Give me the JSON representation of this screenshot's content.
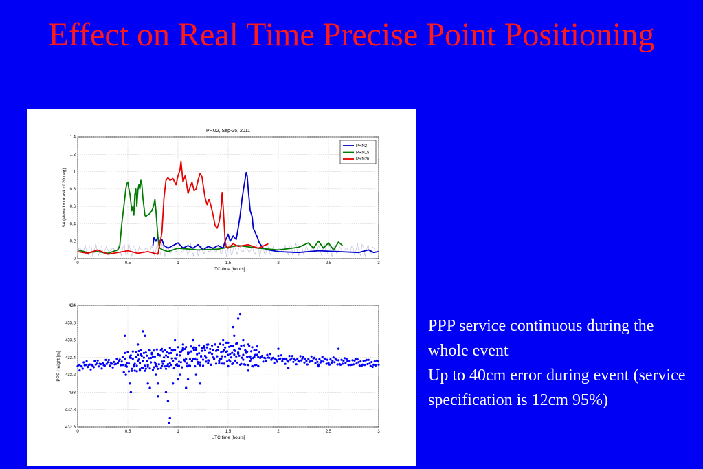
{
  "slide": {
    "title": "Effect on Real Time Precise Point Positioning",
    "bullets": [
      "PPP service continuous during the whole event",
      "Up to 40cm error during event (service specification is 12cm 95%)"
    ]
  },
  "colors": {
    "background": "#0000f5",
    "title": "#ff1a1a",
    "text": "#ffffff",
    "PRN2": "#0000cc",
    "PRN15": "#007a00",
    "PRN26": "#e60000"
  },
  "chart_data": [
    {
      "type": "line",
      "title": "PRU2, Sep-25, 2011",
      "xlabel": "UTC time [hours]",
      "ylabel": "S4 (elevation mask of 20 deg)",
      "xlim": [
        0,
        3
      ],
      "ylim": [
        0,
        1.4
      ],
      "xticks": [
        0,
        0.5,
        1,
        1.5,
        2,
        2.5,
        3
      ],
      "xtick_labels": [
        "0",
        "0.5",
        "1",
        "1.5",
        "2",
        "2.5",
        "3"
      ],
      "yticks": [
        0,
        0.2,
        0.4,
        0.6,
        0.8,
        1,
        1.2,
        1.4
      ],
      "ytick_labels": [
        "0",
        "0.2",
        "0.4",
        "0.6",
        "0.8",
        "1",
        "1.2",
        "1.4"
      ],
      "grid": true,
      "legend": "top-right",
      "series": [
        {
          "name": "PRN2",
          "x": [
            0.75,
            0.76,
            0.78,
            0.8,
            0.82,
            0.84,
            0.86,
            0.9,
            0.95,
            1.0,
            1.05,
            1.1,
            1.15,
            1.2,
            1.25,
            1.3,
            1.35,
            1.4,
            1.45,
            1.47,
            1.5,
            1.52,
            1.55,
            1.58,
            1.6,
            1.62,
            1.64,
            1.66,
            1.68,
            1.69,
            1.7,
            1.72,
            1.74,
            1.75,
            1.77,
            1.79,
            1.81,
            1.83,
            1.85,
            1.9,
            2.0,
            2.2,
            2.4,
            2.6,
            2.8,
            2.9,
            2.95,
            3.0
          ],
          "y": [
            0.15,
            0.24,
            0.2,
            0.25,
            0.18,
            0.22,
            0.15,
            0.12,
            0.15,
            0.18,
            0.12,
            0.15,
            0.12,
            0.16,
            0.1,
            0.14,
            0.12,
            0.15,
            0.12,
            0.2,
            0.28,
            0.2,
            0.26,
            0.22,
            0.35,
            0.5,
            0.7,
            0.85,
            0.99,
            0.95,
            0.8,
            0.55,
            0.48,
            0.35,
            0.3,
            0.25,
            0.18,
            0.15,
            0.12,
            0.1,
            0.08,
            0.07,
            0.09,
            0.08,
            0.07,
            0.1,
            0.07,
            0.08
          ]
        },
        {
          "name": "PRN15",
          "x": [
            0.0,
            0.1,
            0.2,
            0.3,
            0.4,
            0.42,
            0.44,
            0.46,
            0.48,
            0.49,
            0.5,
            0.51,
            0.52,
            0.54,
            0.55,
            0.56,
            0.57,
            0.58,
            0.59,
            0.6,
            0.61,
            0.62,
            0.63,
            0.64,
            0.65,
            0.66,
            0.67,
            0.68,
            0.69,
            0.7,
            0.72,
            0.74,
            0.76,
            0.77,
            0.78,
            0.79,
            0.8,
            0.81,
            0.82,
            0.85,
            0.9,
            1.0,
            1.2,
            1.4,
            1.6,
            1.8,
            2.0,
            2.2,
            2.3,
            2.35,
            2.4,
            2.45,
            2.5,
            2.55,
            2.6,
            2.64
          ],
          "y": [
            0.1,
            0.07,
            0.08,
            0.06,
            0.1,
            0.15,
            0.4,
            0.6,
            0.8,
            0.86,
            0.88,
            0.8,
            0.75,
            0.55,
            0.6,
            0.5,
            0.74,
            0.8,
            0.6,
            0.78,
            0.85,
            0.8,
            0.9,
            0.85,
            0.7,
            0.6,
            0.5,
            0.48,
            0.5,
            0.5,
            0.52,
            0.55,
            0.62,
            0.68,
            0.55,
            0.4,
            0.25,
            0.15,
            0.12,
            0.1,
            0.08,
            0.12,
            0.1,
            0.11,
            0.15,
            0.12,
            0.1,
            0.13,
            0.18,
            0.12,
            0.2,
            0.12,
            0.18,
            0.1,
            0.19,
            0.15
          ]
        },
        {
          "name": "PRN26",
          "x": [
            0.0,
            0.1,
            0.2,
            0.3,
            0.4,
            0.5,
            0.6,
            0.7,
            0.8,
            0.84,
            0.86,
            0.88,
            0.9,
            0.92,
            0.95,
            0.98,
            1.0,
            1.02,
            1.03,
            1.04,
            1.05,
            1.06,
            1.07,
            1.08,
            1.1,
            1.12,
            1.14,
            1.16,
            1.18,
            1.2,
            1.22,
            1.24,
            1.25,
            1.27,
            1.29,
            1.31,
            1.33,
            1.35,
            1.37,
            1.39,
            1.41,
            1.43,
            1.44,
            1.45,
            1.46,
            1.47,
            1.48,
            1.5,
            1.55,
            1.6,
            1.7,
            1.8,
            1.9
          ],
          "y": [
            0.08,
            0.06,
            0.1,
            0.05,
            0.07,
            0.09,
            0.06,
            0.08,
            0.05,
            0.3,
            0.7,
            0.9,
            0.93,
            0.9,
            0.92,
            0.85,
            0.95,
            1.02,
            1.12,
            1.0,
            0.88,
            0.92,
            0.95,
            0.9,
            0.75,
            0.82,
            0.88,
            0.78,
            0.8,
            0.9,
            0.98,
            0.94,
            0.85,
            0.7,
            0.62,
            0.68,
            0.6,
            0.5,
            0.38,
            0.35,
            0.42,
            0.58,
            0.76,
            0.6,
            0.4,
            0.2,
            0.14,
            0.12,
            0.17,
            0.14,
            0.16,
            0.12,
            0.17
          ]
        }
      ]
    },
    {
      "type": "scatter",
      "title": "",
      "xlabel": "UTC time [hours]",
      "ylabel": "PPP Height [m]",
      "xlim": [
        0,
        3
      ],
      "ylim": [
        432.6,
        434
      ],
      "xticks": [
        0,
        0.5,
        1,
        1.5,
        2,
        2.5,
        3
      ],
      "xtick_labels": [
        "0",
        "0.5",
        "1",
        "1.5",
        "2",
        "2.5",
        "3"
      ],
      "yticks": [
        432.6,
        432.8,
        433,
        433.2,
        433.4,
        433.6,
        433.8,
        434
      ],
      "ytick_labels": [
        "432.6",
        "432.8",
        "433",
        "433.2",
        "433.4",
        "433.6",
        "433.8",
        "434"
      ],
      "grid": true,
      "series": [
        {
          "name": "",
          "baseline": [
            [
              0,
              433.3
            ],
            [
              0.5,
              433.35
            ],
            [
              1,
              433.4
            ],
            [
              1.5,
              433.45
            ],
            [
              2,
              433.38
            ],
            [
              2.5,
              433.36
            ],
            [
              3,
              433.33
            ]
          ],
          "baseline_step": 0.01,
          "outliers": [
            [
              0.47,
              433.65
            ],
            [
              0.48,
              433.2
            ],
            [
              0.52,
              433.1
            ],
            [
              0.53,
              433.0
            ],
            [
              0.6,
              433.55
            ],
            [
              0.62,
              433.25
            ],
            [
              0.65,
              433.7
            ],
            [
              0.67,
              433.65
            ],
            [
              0.7,
              433.1
            ],
            [
              0.72,
              433.05
            ],
            [
              0.78,
              433.2
            ],
            [
              0.8,
              433.1
            ],
            [
              0.8,
              432.95
            ],
            [
              0.84,
              433.3
            ],
            [
              0.88,
              433.0
            ],
            [
              0.9,
              432.9
            ],
            [
              0.91,
              432.65
            ],
            [
              0.92,
              432.7
            ],
            [
              0.95,
              433.1
            ],
            [
              0.97,
              433.6
            ],
            [
              1.0,
              433.15
            ],
            [
              1.02,
              433.2
            ],
            [
              1.05,
              433.55
            ],
            [
              1.08,
              433.05
            ],
            [
              1.1,
              433.15
            ],
            [
              1.15,
              433.6
            ],
            [
              1.18,
              433.2
            ],
            [
              1.22,
              433.1
            ],
            [
              1.3,
              433.55
            ],
            [
              1.45,
              433.6
            ],
            [
              1.5,
              433.3
            ],
            [
              1.55,
              433.75
            ],
            [
              1.56,
              433.65
            ],
            [
              1.6,
              433.85
            ],
            [
              1.62,
              433.9
            ],
            [
              1.65,
              433.6
            ],
            [
              1.7,
              433.25
            ],
            [
              1.8,
              433.3
            ],
            [
              2.0,
              433.5
            ],
            [
              2.1,
              433.28
            ],
            [
              2.4,
              433.3
            ],
            [
              2.6,
              433.5
            ]
          ]
        }
      ]
    }
  ]
}
